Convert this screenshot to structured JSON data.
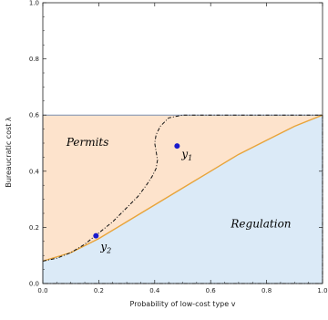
{
  "chart_data": {
    "type": "area",
    "xlabel": "Probability of low-cost type  v",
    "ylabel": "Bureaucratic cost  λ",
    "xlim": [
      0,
      1
    ],
    "ylim": [
      0,
      1
    ],
    "x_ticks": [
      "0.0",
      "0.2",
      "0.4",
      "0.6",
      "0.8",
      "1.0"
    ],
    "y_ticks": [
      "0.0",
      "0.2",
      "0.4",
      "0.6",
      "0.8",
      "1.0"
    ],
    "region_cap": 0.6,
    "regions": [
      {
        "name": "Permits",
        "color": "#fde3cc",
        "label_at": [
          0.16,
          0.49
        ]
      },
      {
        "name": "Regulation",
        "color": "#dbeaf7",
        "label_at": [
          0.78,
          0.2
        ]
      }
    ],
    "series": [
      {
        "style": "solid",
        "color": "#e8a43a",
        "x": [
          0.0,
          0.1,
          0.2,
          0.3,
          0.4,
          0.5,
          0.6,
          0.7,
          0.8,
          0.9,
          1.0
        ],
        "y": [
          0.08,
          0.11,
          0.16,
          0.22,
          0.28,
          0.34,
          0.4,
          0.46,
          0.51,
          0.56,
          0.6
        ]
      },
      {
        "style": "dash-dot",
        "color": "#111111",
        "x": [
          0.0,
          0.05,
          0.1,
          0.15,
          0.2,
          0.25,
          0.3,
          0.34,
          0.37,
          0.39,
          0.405,
          0.41,
          0.405,
          0.4,
          0.405,
          0.42,
          0.45,
          0.5,
          1.0
        ],
        "y": [
          0.08,
          0.09,
          0.11,
          0.14,
          0.18,
          0.22,
          0.27,
          0.31,
          0.35,
          0.38,
          0.41,
          0.44,
          0.47,
          0.5,
          0.53,
          0.56,
          0.59,
          0.6,
          0.6
        ]
      }
    ],
    "points": [
      {
        "name": "y1",
        "base": "y",
        "sub": "1",
        "x": 0.48,
        "y": 0.49
      },
      {
        "name": "y2",
        "base": "y",
        "sub": "2",
        "x": 0.19,
        "y": 0.17
      }
    ],
    "point_color": "#1a1acc"
  }
}
